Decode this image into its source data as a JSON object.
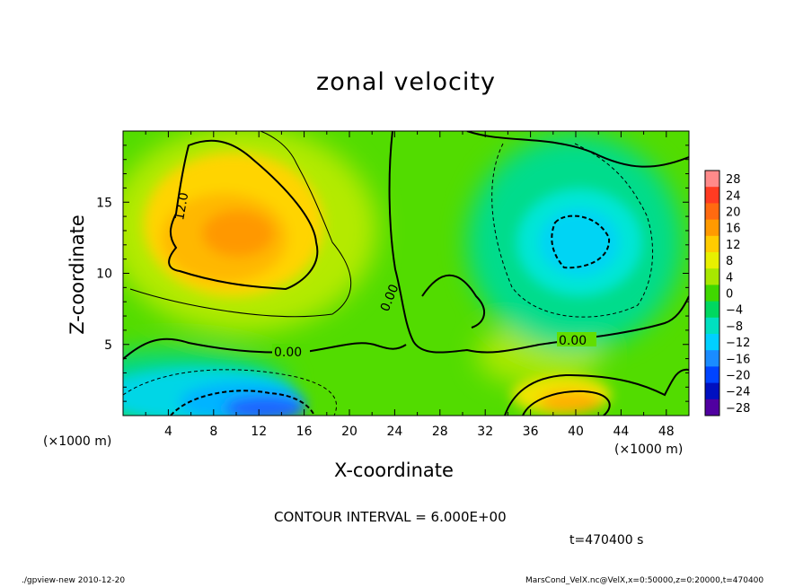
{
  "chart_data": {
    "type": "heatmap",
    "title": "zonal velocity",
    "xlabel": "X-coordinate",
    "ylabel": "Z-coordinate",
    "x_unit_label": "(×1000 m)",
    "xlim": [
      0,
      50
    ],
    "ylim": [
      0,
      20
    ],
    "x_ticks": [
      4,
      8,
      12,
      16,
      20,
      24,
      28,
      32,
      36,
      40,
      44,
      48
    ],
    "y_ticks": [
      5,
      10,
      15
    ],
    "colorbar": {
      "labels": [
        "28",
        "24",
        "20",
        "16",
        "12",
        "8",
        "4",
        "0",
        "−4",
        "−8",
        "−12",
        "−16",
        "−20",
        "−24",
        "−28"
      ],
      "colors": [
        "#ff8a8a",
        "#ff3b22",
        "#ff6a10",
        "#ff9a00",
        "#ffcc00",
        "#e8f000",
        "#a8e800",
        "#40d800",
        "#00d860",
        "#00e0c0",
        "#00d0ff",
        "#1a8cff",
        "#0044ff",
        "#0010c0",
        "#5000a0"
      ]
    },
    "features": [
      {
        "kind": "max",
        "x": 11,
        "z": 13,
        "value": 16
      },
      {
        "kind": "min",
        "x": 40,
        "z": 12.5,
        "value": -12
      },
      {
        "kind": "min",
        "x": 13,
        "z": 1,
        "value": -18
      },
      {
        "kind": "max",
        "x": 40,
        "z": 1.2,
        "value": 14
      }
    ],
    "contour_labels": [
      "12.0",
      "0.00",
      "0.00",
      "0.00"
    ],
    "contour_interval": "CONTOUR INTERVAL = 6.000E+00",
    "time": "t=470400 s"
  },
  "footer": {
    "left": "./gpview-new   2010-12-20",
    "right": "MarsCond_VelX.nc@VelX,x=0:50000,z=0:20000,t=470400"
  }
}
